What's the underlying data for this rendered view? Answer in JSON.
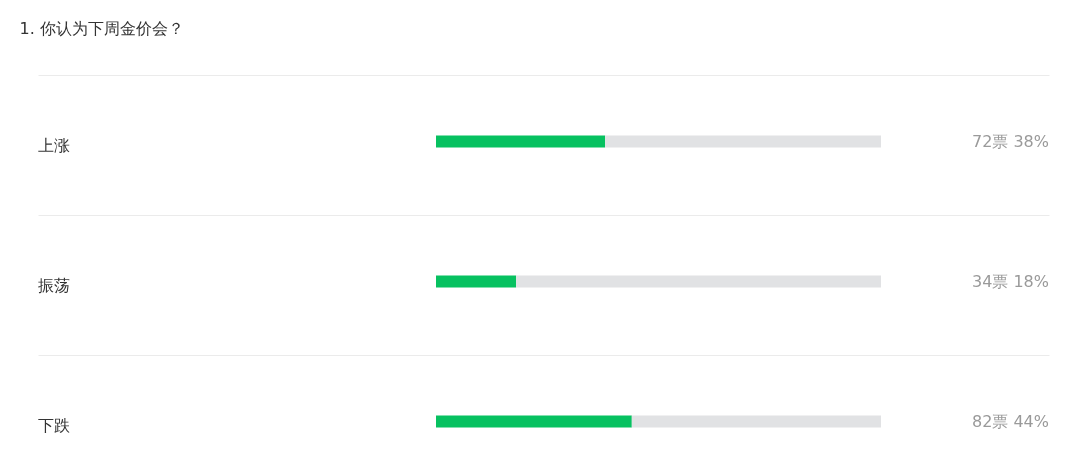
{
  "chart_data": {
    "type": "bar",
    "title": "1. 你认为下周金价会？",
    "orientation": "horizontal",
    "stacked": true,
    "categories": [
      "上涨",
      "振荡",
      "下跌"
    ],
    "series": [
      {
        "color": "#07c160",
        "values": [
          38,
          18,
          44
        ],
        "value_labels": [
          "72票 38%",
          "34票 18%",
          "82票 44%"
        ]
      },
      {
        "color": "#e1e2e4",
        "values": [
          62,
          82,
          56
        ]
      }
    ],
    "xlim": [
      0,
      100
    ],
    "tick_labels": "y",
    "grid": "y"
  }
}
